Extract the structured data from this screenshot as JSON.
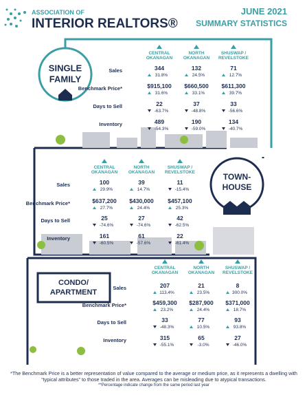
{
  "header": {
    "org_line1": "ASSOCIATION OF",
    "org_line2": "INTERIOR REALTORS®",
    "period": "JUNE 2021",
    "subtitle": "SUMMARY STATISTICS"
  },
  "sections": [
    {
      "title": [
        "SINGLE",
        "FAMILY"
      ],
      "regions": [
        [
          "CENTRAL",
          "OKANAGAN"
        ],
        [
          "NORTH",
          "OKANAGAN"
        ],
        [
          "SHUSWAP /",
          "REVELSTOKE"
        ]
      ],
      "rows": [
        {
          "label": "Sales",
          "cells": [
            {
              "value": "344",
              "change": "31.8%"
            },
            {
              "value": "132",
              "change": "24.5%"
            },
            {
              "value": "71",
              "change": "12.7%"
            }
          ]
        },
        {
          "label": "Benchmark Price*",
          "cells": [
            {
              "value": "$915,100",
              "change": "31.6%"
            },
            {
              "value": "$660,500",
              "change": "33.1%"
            },
            {
              "value": "$611,300",
              "change": "39.7%"
            }
          ]
        },
        {
          "label": "Days to Sell",
          "cells": [
            {
              "value": "22",
              "change": "-63.7%"
            },
            {
              "value": "37",
              "change": "-48.8%"
            },
            {
              "value": "33",
              "change": "-56.6%"
            }
          ]
        },
        {
          "label": "Inventory",
          "cells": [
            {
              "value": "489",
              "change": "-54.3%"
            },
            {
              "value": "190",
              "change": "-59.0%"
            },
            {
              "value": "134",
              "change": "-40.7%"
            }
          ]
        }
      ]
    },
    {
      "title": [
        "TOWN-",
        "HOUSE"
      ],
      "regions": [
        [
          "CENTRAL",
          "OKANAGAN"
        ],
        [
          "NORTH",
          "OKANAGAN"
        ],
        [
          "SHUSWAP /",
          "REVELSTOKE"
        ]
      ],
      "rows": [
        {
          "label": "Sales",
          "cells": [
            {
              "value": "100",
              "change": "29.9%"
            },
            {
              "value": "39",
              "change": "14.7%"
            },
            {
              "value": "11",
              "change": "-15.4%"
            }
          ]
        },
        {
          "label": "Benchmark Price*",
          "cells": [
            {
              "value": "$637,200",
              "change": "27.7%"
            },
            {
              "value": "$430,000",
              "change": "24.4%"
            },
            {
              "value": "$457,100",
              "change": "25.3%"
            }
          ]
        },
        {
          "label": "Days to Sell",
          "cells": [
            {
              "value": "25",
              "change": "-74.6%"
            },
            {
              "value": "27",
              "change": "-74.6%"
            },
            {
              "value": "42",
              "change": "-62.5%"
            }
          ]
        },
        {
          "label": "Inventory",
          "cells": [
            {
              "value": "161",
              "change": "-60.5%"
            },
            {
              "value": "61",
              "change": "-57.6%"
            },
            {
              "value": "22",
              "change": "-61.4%"
            }
          ]
        }
      ]
    },
    {
      "title": [
        "CONDO/",
        "APARTMENT"
      ],
      "regions": [
        [
          "CENTRAL",
          "OKANAGAN"
        ],
        [
          "NORTH",
          "OKANAGAN"
        ],
        [
          "SHUSWAP /",
          "REVELSTOKE"
        ]
      ],
      "rows": [
        {
          "label": "Sales",
          "cells": [
            {
              "value": "207",
              "change": "113.4%"
            },
            {
              "value": "21",
              "change": "23.5%"
            },
            {
              "value": "8",
              "change": "300.0%"
            }
          ]
        },
        {
          "label": "Benchmark Price*",
          "cells": [
            {
              "value": "$459,300",
              "change": "23.2%"
            },
            {
              "value": "$287,900",
              "change": "24.4%"
            },
            {
              "value": "$371,000",
              "change": "18.7%"
            }
          ]
        },
        {
          "label": "Days to Sell",
          "cells": [
            {
              "value": "33",
              "change": "-48.3%"
            },
            {
              "value": "77",
              "change": "10.5%"
            },
            {
              "value": "93",
              "change": "93.8%"
            }
          ]
        },
        {
          "label": "Inventory",
          "cells": [
            {
              "value": "315",
              "change": "-55.1%"
            },
            {
              "value": "65",
              "change": "-3.0%"
            },
            {
              "value": "27",
              "change": "-46.0%"
            }
          ]
        }
      ]
    }
  ],
  "footnote": {
    "main": "*The Benchmark Price is a better representation of value compared to the average or medium price, as it represents a dwelling with “typical attributes” to those traded in the area. Averages can be misleading due to atypical transactions.",
    "percent_note": "**Percentage indicate change from the same period last year"
  }
}
